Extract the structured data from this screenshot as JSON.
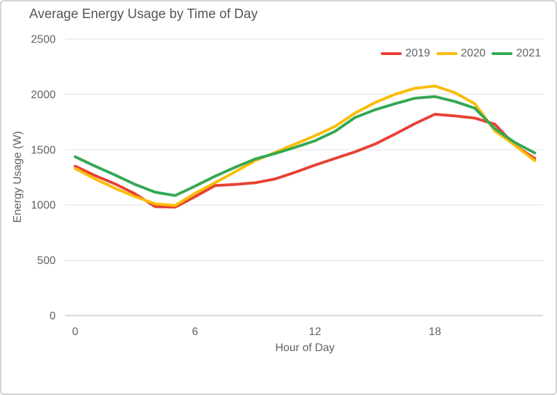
{
  "chart_data": {
    "type": "line",
    "title": "Average Energy Usage by Time of Day",
    "xlabel": "Hour of Day",
    "ylabel": "Energy Usage (W)",
    "x": [
      0,
      1,
      2,
      3,
      4,
      5,
      6,
      7,
      8,
      9,
      10,
      11,
      12,
      13,
      14,
      15,
      16,
      17,
      18,
      19,
      20,
      21,
      22,
      23
    ],
    "series": [
      {
        "name": "2019",
        "color": "#E74133",
        "values": [
          1350,
          1265,
          1190,
          1100,
          985,
          980,
          1075,
          1175,
          1185,
          1200,
          1235,
          1295,
          1360,
          1420,
          1480,
          1550,
          1640,
          1735,
          1820,
          1805,
          1785,
          1730,
          1540,
          1420
        ]
      },
      {
        "name": "2020",
        "color": "#FBBC04",
        "values": [
          1330,
          1235,
          1150,
          1075,
          1010,
          995,
          1105,
          1200,
          1300,
          1400,
          1475,
          1550,
          1625,
          1710,
          1830,
          1925,
          2000,
          2055,
          2075,
          2015,
          1915,
          1670,
          1540,
          1400
        ]
      },
      {
        "name": "2021",
        "color": "#34A853",
        "values": [
          1435,
          1350,
          1270,
          1185,
          1115,
          1085,
          1170,
          1260,
          1340,
          1415,
          1465,
          1520,
          1580,
          1665,
          1790,
          1860,
          1915,
          1965,
          1980,
          1935,
          1875,
          1690,
          1565,
          1470
        ]
      }
    ],
    "xticks": [
      0,
      6,
      12,
      18
    ],
    "yticks": [
      0,
      500,
      1000,
      1500,
      2000,
      2500
    ],
    "xlim": [
      0,
      23
    ],
    "ylim": [
      0,
      2500
    ],
    "grid": "horizontal",
    "legend_position": "top-right",
    "text_color": "#616161",
    "grid_color": "#e4e4e4",
    "axis_color": "#cccccc",
    "tick_font_size": 16,
    "line_width": 4
  }
}
